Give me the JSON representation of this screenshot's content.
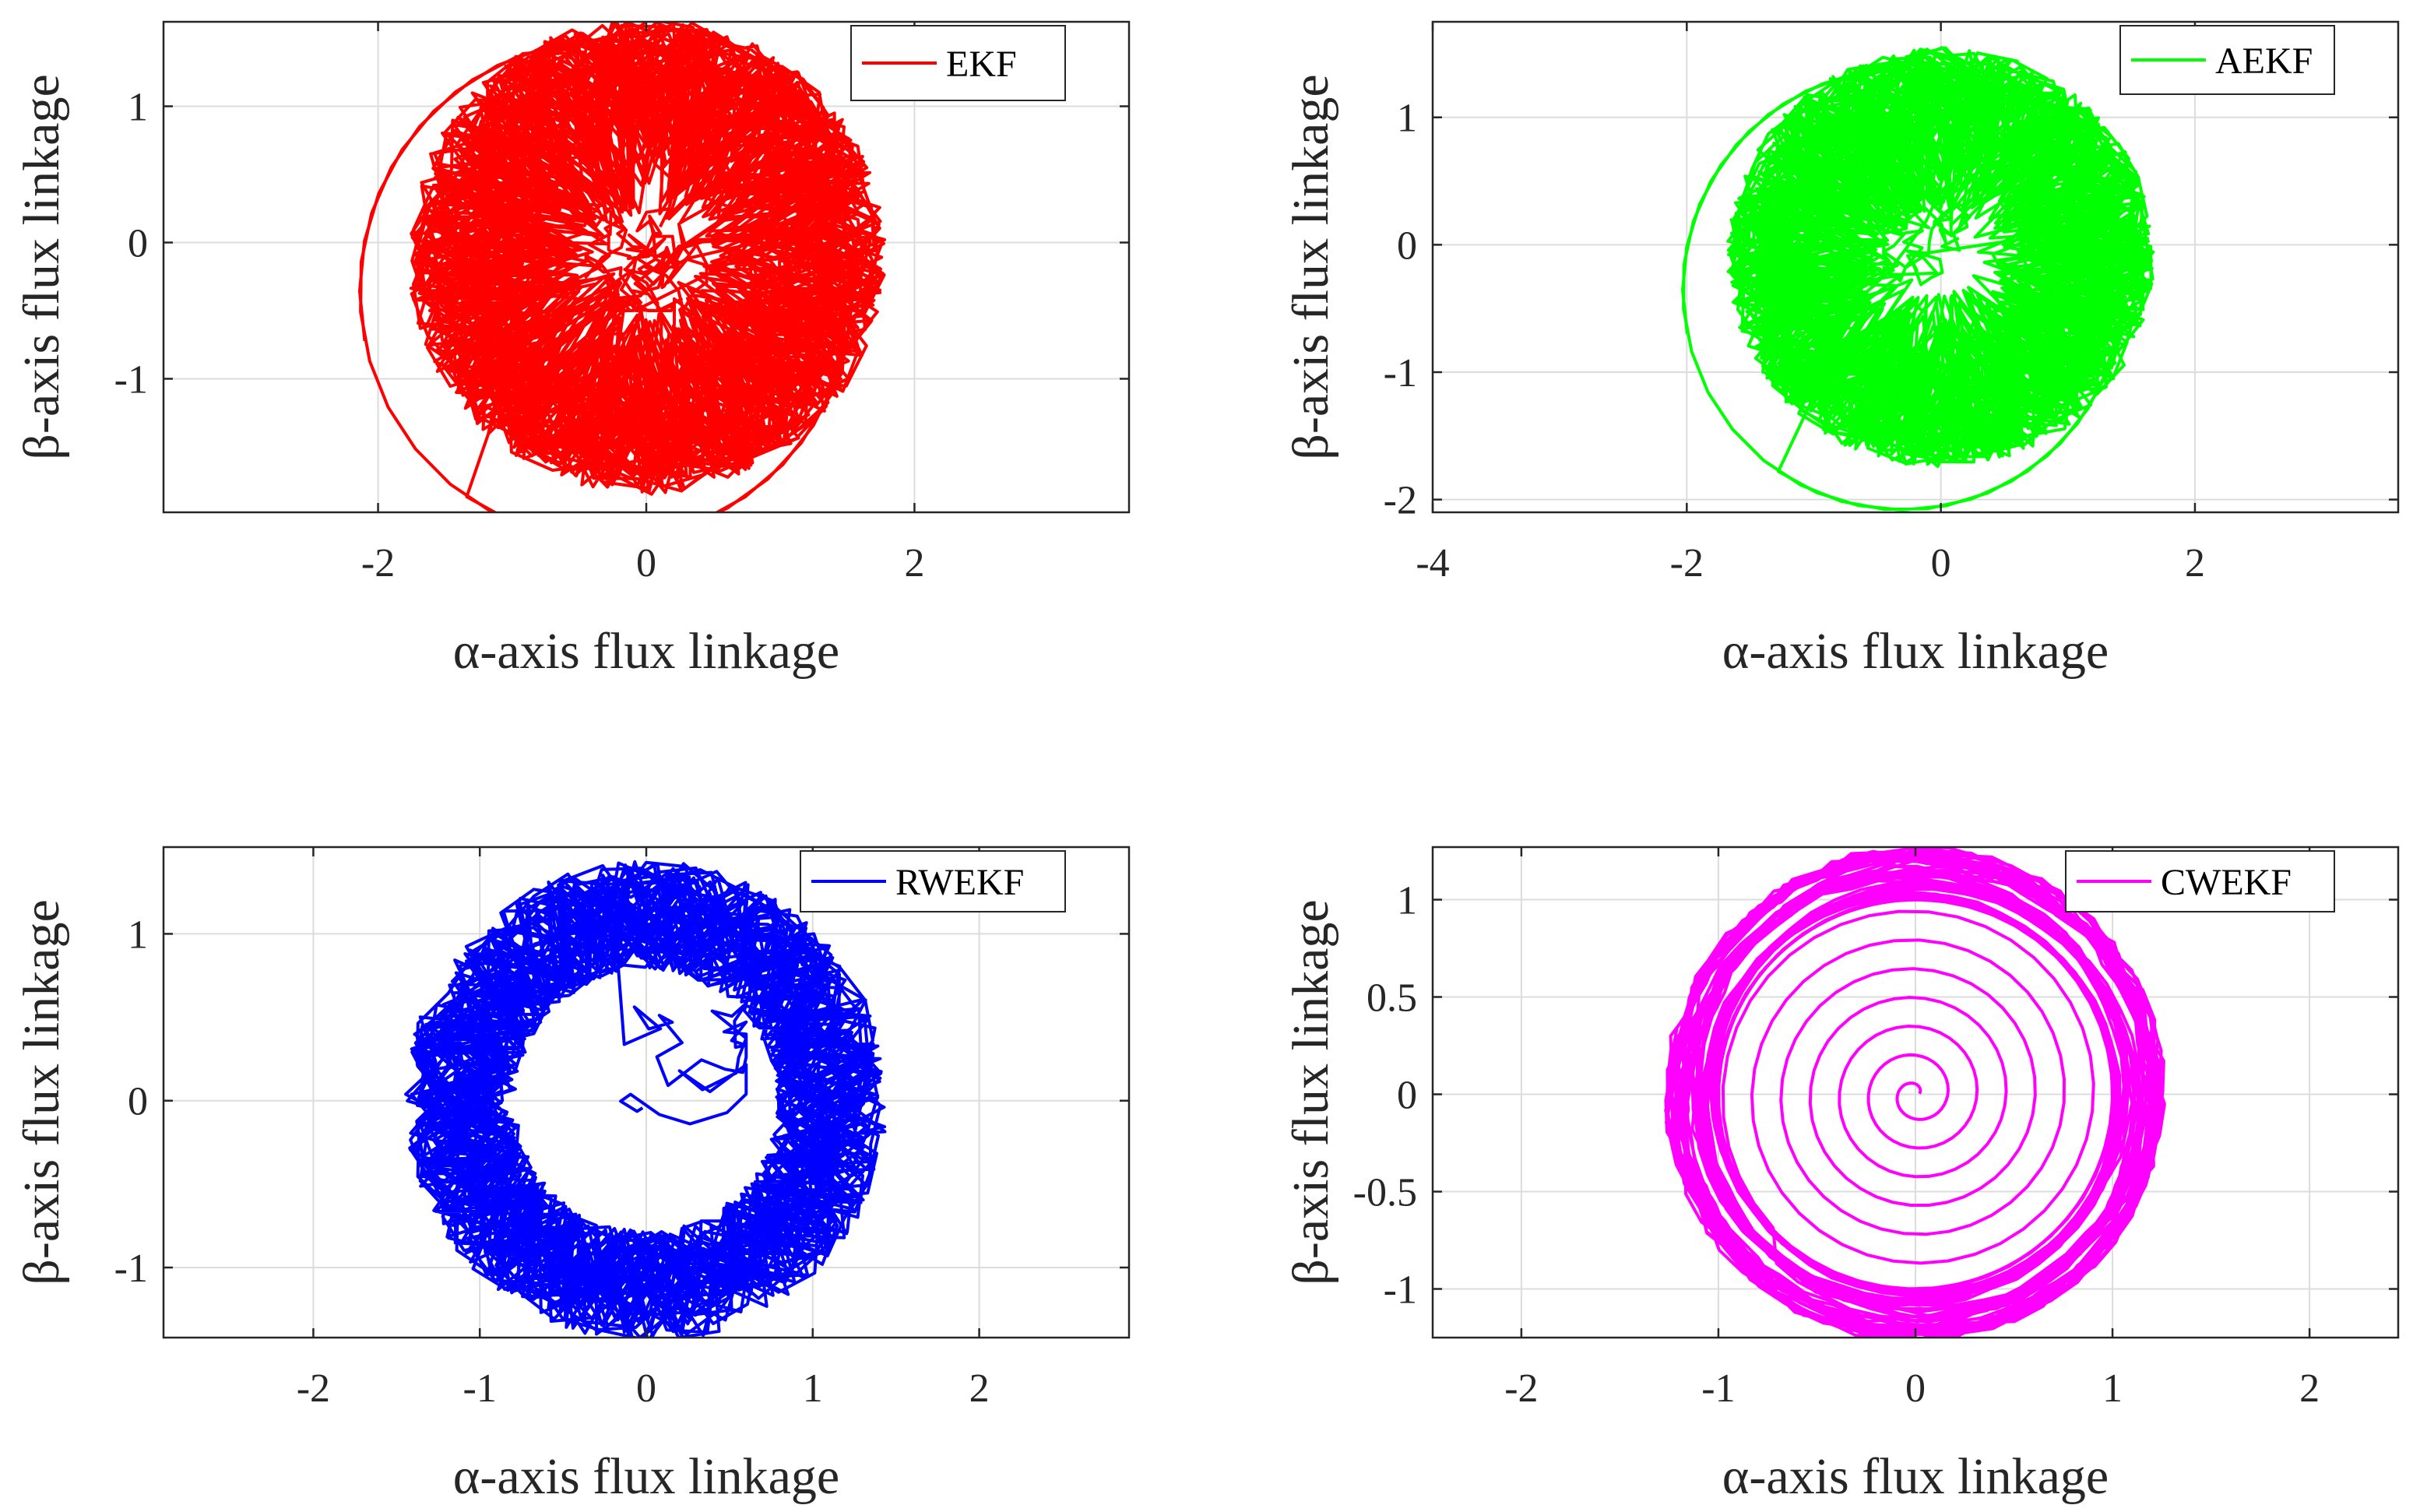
{
  "chart_data": [
    {
      "type": "line",
      "title": "",
      "xlabel": "α-axis flux linkage",
      "ylabel": "β-axis flux linkage",
      "xlim": [
        -3.6,
        3.6
      ],
      "ylim": [
        -1.98,
        1.62
      ],
      "xticks": [
        -2,
        0,
        2
      ],
      "yticks": [
        -1,
        0,
        1
      ],
      "xtick_labels": [
        "-2",
        "0",
        "2"
      ],
      "ytick_labels": [
        "-1",
        "0",
        "1"
      ],
      "grid": true,
      "legend": {
        "position": "top-right",
        "entries": [
          "EKF"
        ]
      },
      "series": [
        {
          "name": "EKF",
          "color": "#ff0000",
          "shape": "noisy-orbit",
          "radius_range": [
            0.6,
            1.75
          ],
          "center": [
            0.0,
            -0.1
          ]
        }
      ]
    },
    {
      "type": "line",
      "title": "",
      "xlabel": "α-axis flux linkage",
      "ylabel": "β-axis flux linkage",
      "xlim": [
        -4,
        3.6
      ],
      "ylim": [
        -2.1,
        1.75
      ],
      "xticks": [
        -4,
        -2,
        0,
        2
      ],
      "yticks": [
        -2,
        -1,
        0,
        1
      ],
      "xtick_labels": [
        "-4",
        "-2",
        "0",
        "2"
      ],
      "ytick_labels": [
        "-2",
        "-1",
        "0",
        "1"
      ],
      "grid": true,
      "legend": {
        "position": "top-right",
        "entries": [
          "AEKF"
        ]
      },
      "series": [
        {
          "name": "AEKF",
          "color": "#00ff00",
          "shape": "noisy-orbit",
          "radius_range": [
            0.55,
            1.65
          ],
          "center": [
            0.0,
            -0.1
          ]
        }
      ]
    },
    {
      "type": "line",
      "title": "",
      "xlabel": "α-axis flux linkage",
      "ylabel": "β-axis flux linkage",
      "xlim": [
        -2.9,
        2.9
      ],
      "ylim": [
        -1.42,
        1.52
      ],
      "xticks": [
        -2,
        -1,
        0,
        1,
        2
      ],
      "yticks": [
        -1,
        0,
        1
      ],
      "xtick_labels": [
        "-2",
        "-1",
        "0",
        "1",
        "2"
      ],
      "ytick_labels": [
        "-1",
        "0",
        "1"
      ],
      "grid": true,
      "legend": {
        "position": "top-right",
        "entries": [
          "RWEKF"
        ]
      },
      "series": [
        {
          "name": "RWEKF",
          "color": "#0000ff",
          "shape": "noisy-ring",
          "radius_range": [
            0.78,
            1.45
          ],
          "center": [
            0.0,
            0.0
          ]
        }
      ]
    },
    {
      "type": "line",
      "title": "",
      "xlabel": "α-axis flux linkage",
      "ylabel": "β-axis flux linkage",
      "xlim": [
        -2.45,
        2.45
      ],
      "ylim": [
        -1.25,
        1.27
      ],
      "xticks": [
        -2,
        -1,
        0,
        1,
        2
      ],
      "yticks": [
        -1,
        -0.5,
        0,
        0.5,
        1
      ],
      "xtick_labels": [
        "-2",
        "-1",
        "0",
        "1",
        "2"
      ],
      "ytick_labels": [
        "-1",
        "-0.5",
        "0",
        "0.5",
        "1"
      ],
      "grid": true,
      "legend": {
        "position": "top-right",
        "entries": [
          "CWEKF"
        ]
      },
      "series": [
        {
          "name": "CWEKF",
          "color": "#ff00ff",
          "shape": "spiral-ring",
          "radius_range": [
            1.0,
            1.28
          ],
          "center": [
            0.0,
            0.0
          ]
        }
      ]
    }
  ]
}
